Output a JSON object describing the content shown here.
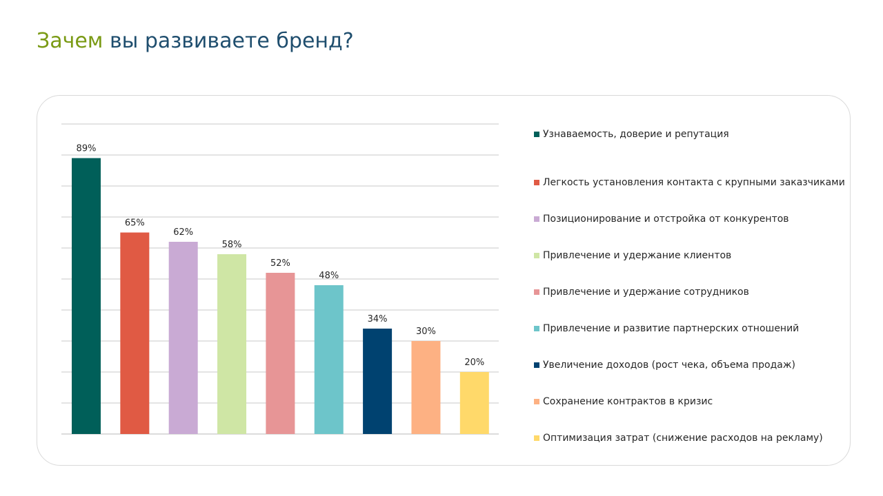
{
  "title": {
    "accent": "Зачем",
    "rest": " вы развиваете бренд?"
  },
  "colors": {
    "title_accent": "#7a9a14",
    "title_main": "#1f4e6e",
    "grid": "#c8c8c8",
    "label_text": "#262626"
  },
  "chart_data": {
    "type": "bar",
    "title": "Зачем вы развиваете бренд?",
    "xlabel": "",
    "ylabel": "",
    "ylim": [
      0,
      100
    ],
    "grid": true,
    "legend_position": "right",
    "categories": [
      "Узнаваемость, доверие и репутация",
      "Легкость установления контакта с крупными заказчиками",
      "Позиционирование и отстройка от конкурентов",
      "Привлечение и удержание клиентов",
      "Привлечение и удержание сотрудников",
      "Привлечение и развитие партнерских отношений",
      "Увеличение доходов (рост чека, объема продаж)",
      "Сохранение контрактов в кризис",
      "Оптимизация затрат (снижение расходов на рекламу)"
    ],
    "values": [
      89,
      65,
      62,
      58,
      52,
      48,
      34,
      30,
      20
    ],
    "value_labels": [
      "89%",
      "65%",
      "62%",
      "58%",
      "52%",
      "48%",
      "34%",
      "30%",
      "20%"
    ],
    "bar_colors": [
      "#005f59",
      "#e05a44",
      "#c9aad4",
      "#cfe6a5",
      "#e79596",
      "#6dc5ca",
      "#004270",
      "#fdb183",
      "#ffd96a"
    ]
  }
}
